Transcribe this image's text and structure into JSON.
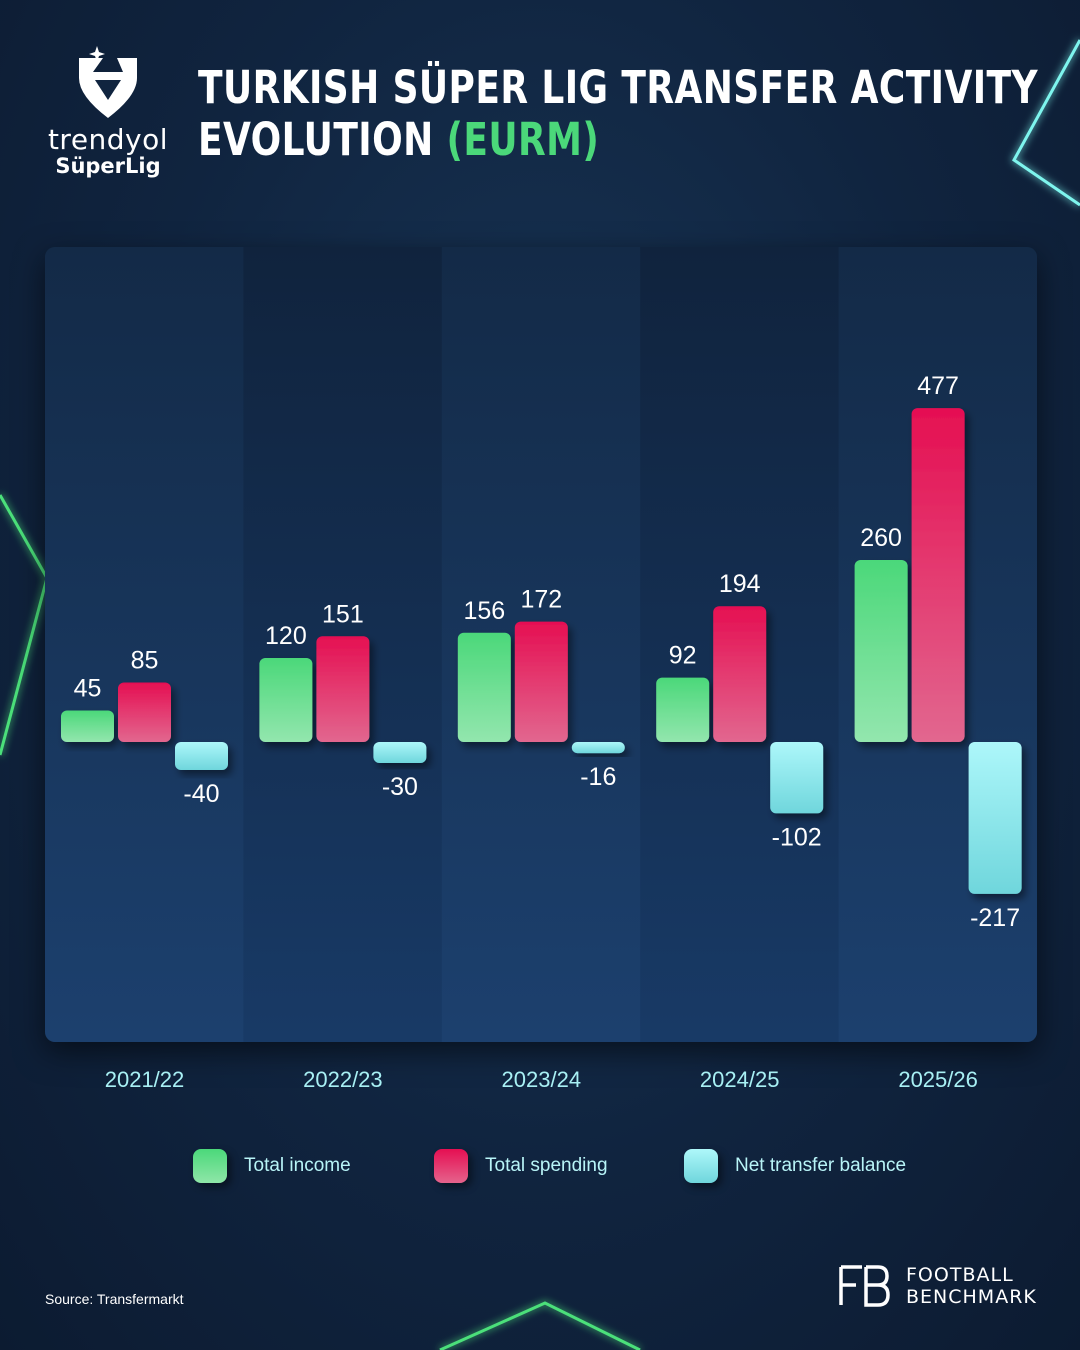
{
  "logo": {
    "word": "trendyol",
    "sub": "SüperLig"
  },
  "title": {
    "line1": "TURKISH SÜPER LIG TRANSFER ACTIVITY",
    "line2": "EVOLUTION",
    "accent": "(EURM)"
  },
  "chart_data": {
    "type": "bar",
    "categories": [
      "2021/22",
      "2022/23",
      "2023/24",
      "2024/25",
      "2025/26"
    ],
    "series": [
      {
        "name": "Total income",
        "values": [
          45,
          120,
          156,
          92,
          260
        ],
        "color": "#4bd87a"
      },
      {
        "name": "Total spending",
        "values": [
          85,
          151,
          172,
          194,
          477
        ],
        "color": "#e50f52"
      },
      {
        "name": "Net transfer balance",
        "values": [
          -40,
          -30,
          -16,
          -102,
          -217
        ],
        "color": "#8ff2f5"
      }
    ],
    "value_labels": [
      [
        "45",
        "120",
        "156",
        "92",
        "260"
      ],
      [
        "85",
        "151",
        "172",
        "194",
        "477"
      ],
      [
        "-40",
        "-30",
        "-16",
        "-102",
        "-217"
      ]
    ],
    "ylim": [
      -217,
      477
    ],
    "grid": false,
    "legend": "bottom"
  },
  "source": "Source: Transfermarkt",
  "brand": {
    "line1": "FOOTBALL",
    "line2": "BENCHMARK"
  },
  "colors": {
    "accent": "#4bd87a",
    "category_label": "#a8f0f4"
  }
}
